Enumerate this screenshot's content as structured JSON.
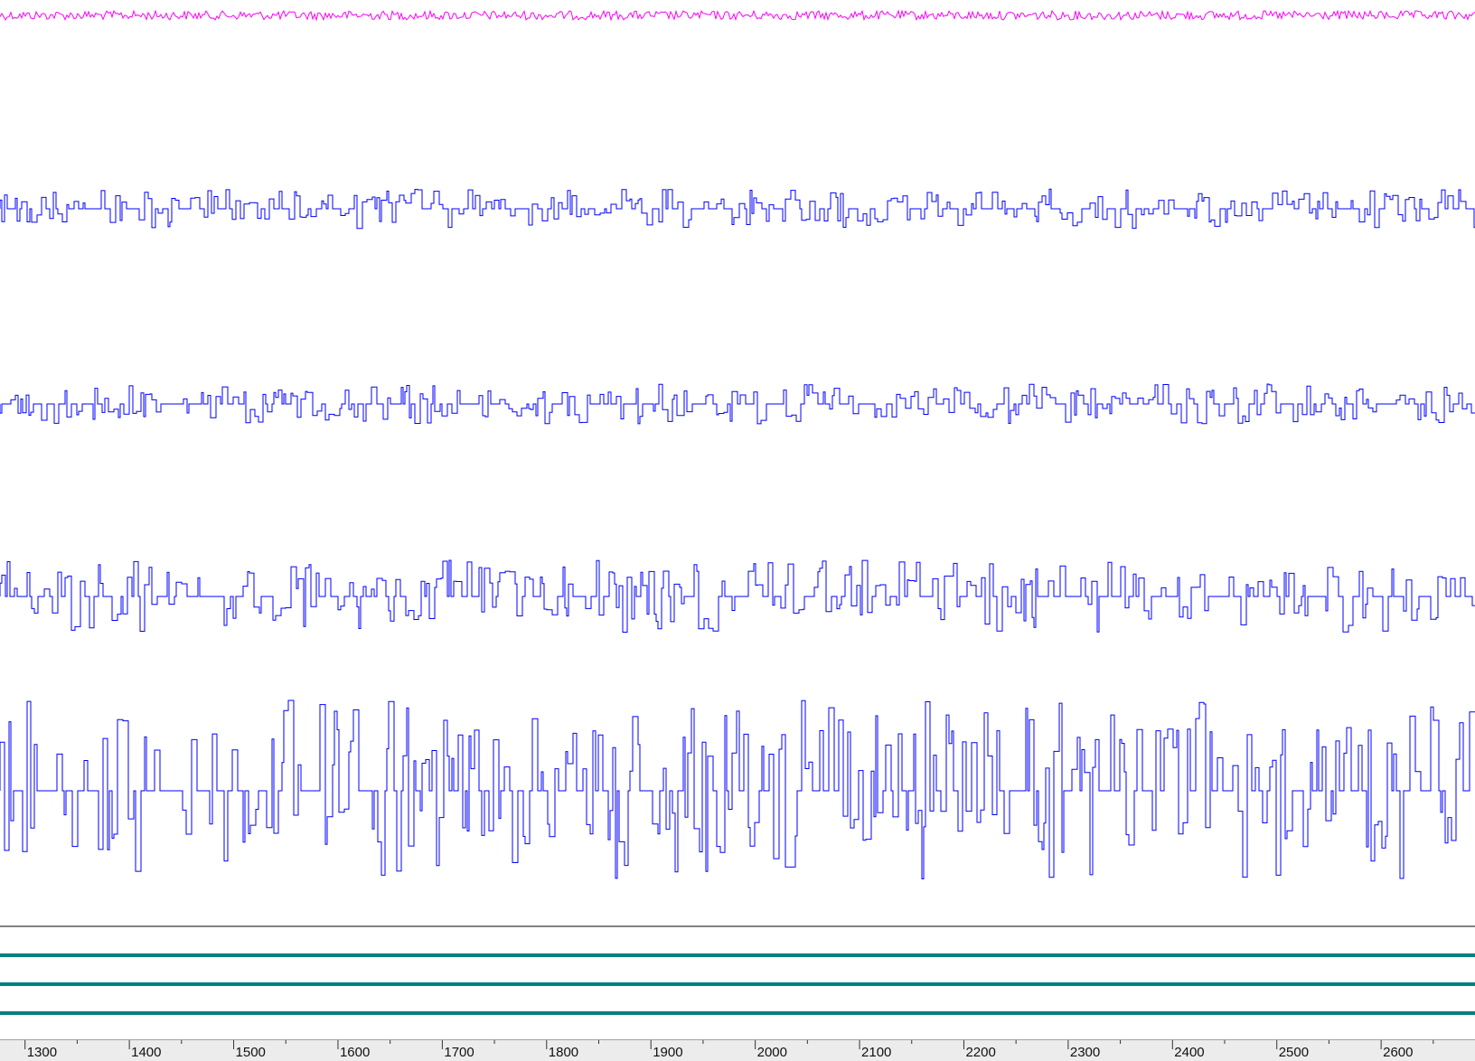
{
  "chart_data": {
    "type": "line",
    "x_axis": {
      "range": [
        1276,
        2690
      ],
      "ticks": [
        1300,
        1400,
        1500,
        1600,
        1700,
        1800,
        1900,
        2000,
        2100,
        2200,
        2300,
        2400,
        2500,
        2600
      ],
      "tick_labels": [
        "1300",
        "1400",
        "1500",
        "1600",
        "1700",
        "1800",
        "1900",
        "2000",
        "2100",
        "2200",
        "2300",
        "2400",
        "2500",
        "2600"
      ],
      "minor_tick_step": 50
    },
    "grid": false,
    "series": [
      {
        "color": "#ff00ff",
        "style": "noise-trace",
        "amplitude": 0.15,
        "row": 1
      },
      {
        "color": "#0000ff",
        "style": "step-trace",
        "amplitude": 0.3,
        "row": 2
      },
      {
        "color": "#0000ff",
        "style": "step-trace",
        "amplitude": 0.32,
        "row": 3
      },
      {
        "color": "#0000ff",
        "style": "step-trace",
        "amplitude": 0.7,
        "row": 4
      },
      {
        "color": "#0000ff",
        "style": "step-trace",
        "amplitude": 1.0,
        "row": 5
      },
      {
        "color": "#000000",
        "style": "flat-line",
        "row": 6
      },
      {
        "color": "#008080",
        "style": "flat-line-thick",
        "row": 7
      },
      {
        "color": "#008080",
        "style": "flat-line-thick",
        "row": 8
      },
      {
        "color": "#008080",
        "style": "flat-line-thick",
        "row": 9
      }
    ]
  },
  "colors": {
    "ruler_background": "#ececec",
    "ruler_border": "#a0a0a0"
  }
}
